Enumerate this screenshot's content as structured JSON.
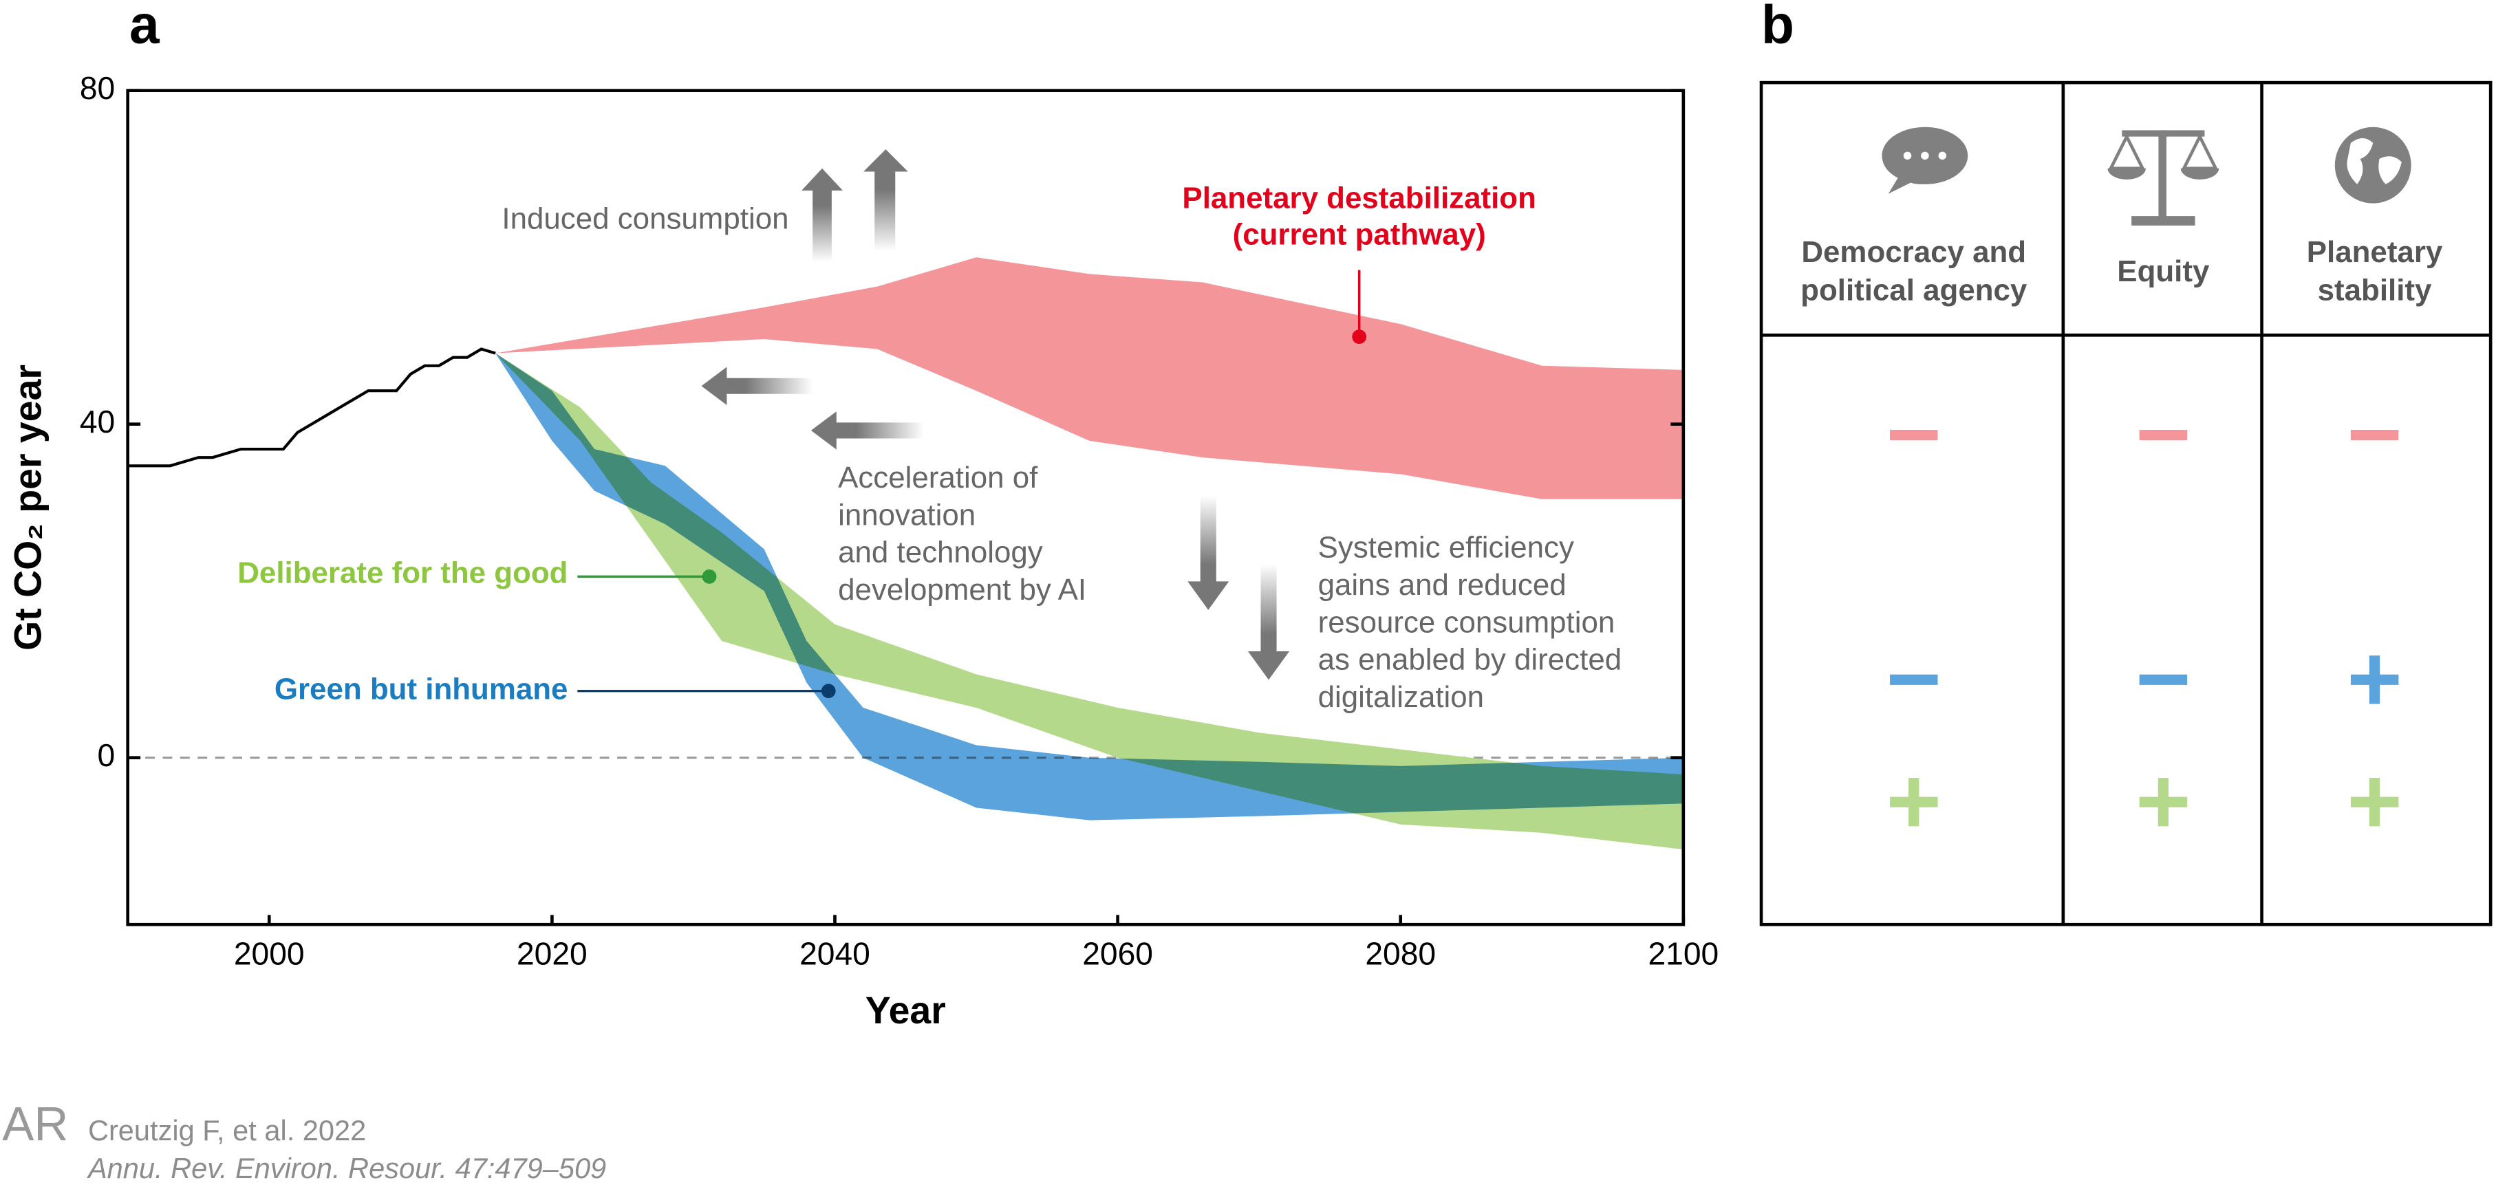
{
  "chart_data": {
    "type": "range-area",
    "panel_label": "a",
    "y_label": "Gt CO₂ per year",
    "x_label": "Year",
    "xlim": [
      1990,
      2100
    ],
    "ylim": [
      -20,
      80
    ],
    "xticks": [
      2000,
      2020,
      2040,
      2060,
      2080,
      2100
    ],
    "yticks": [
      0,
      40,
      80
    ],
    "history": {
      "color": "#000000",
      "x": [
        1990,
        1993,
        1995,
        1996,
        1998,
        2000,
        2001,
        2002,
        2004,
        2007,
        2009,
        2010,
        2011,
        2012,
        2013,
        2014,
        2015,
        2016
      ],
      "values": [
        35,
        35,
        36,
        36,
        37,
        37,
        37,
        39,
        41,
        44,
        44,
        46,
        47,
        47,
        48,
        48,
        49,
        48.5
      ]
    },
    "series": [
      {
        "name": [
          "Planetary destabilization",
          "(current pathway)"
        ],
        "color": "#f4959a",
        "label_color": "#e2001a",
        "x": [
          2016,
          2035,
          2043,
          2050,
          2058,
          2066,
          2080,
          2090,
          2100
        ],
        "upper": [
          48.5,
          54,
          56.5,
          60,
          58,
          57,
          52,
          47,
          46.5
        ],
        "lower": [
          48.5,
          50.2,
          49,
          44,
          38,
          36,
          34,
          31,
          31
        ]
      },
      {
        "name": [
          "Deliberate for the good"
        ],
        "color": "#b5d98a",
        "label_color": "#8dc63f",
        "x": [
          2016,
          2022,
          2027,
          2032,
          2040,
          2050,
          2060,
          2070,
          2080,
          2090,
          2100
        ],
        "upper": [
          48.5,
          42,
          33,
          27,
          16,
          10,
          6,
          3,
          1,
          -1,
          -2
        ],
        "lower": [
          48.5,
          38,
          26,
          14,
          10,
          6,
          0,
          -4,
          -8,
          -9,
          -11
        ]
      },
      {
        "name": [
          "Green but inhumane"
        ],
        "color": "#5ba3dc",
        "label_color": "#1a7cc1",
        "x": [
          2016,
          2020,
          2023,
          2028,
          2035,
          2038,
          2042,
          2050,
          2058,
          2070,
          2080,
          2100
        ],
        "upper": [
          48.5,
          44,
          37,
          35,
          25,
          14,
          6,
          1.5,
          0,
          -0.5,
          -1,
          0
        ],
        "lower": [
          48.5,
          38,
          32,
          28,
          20,
          9,
          0,
          -6,
          -7.5,
          -7,
          -6.5,
          -5.5
        ]
      }
    ],
    "annotations": [
      [
        "Induced consumption"
      ],
      [
        "Acceleration of",
        "innovation",
        "and technology",
        "development by AI"
      ],
      [
        "Systemic efficiency",
        "gains and reduced",
        "resource consumption",
        "as enabled by directed",
        "digitalization"
      ]
    ]
  },
  "panel_b": {
    "panel_label": "b",
    "columns": [
      [
        "Democracy and",
        "political agency"
      ],
      [
        "Equity"
      ],
      [
        "Planetary",
        "stability"
      ]
    ],
    "rows": [
      {
        "color": "#f4959a",
        "signs": [
          "−",
          "−",
          "−"
        ]
      },
      {
        "color": "#5ba3dc",
        "signs": [
          "−",
          "−",
          "+"
        ]
      },
      {
        "color": "#b5d98a",
        "signs": [
          "+",
          "+",
          "+"
        ]
      }
    ]
  },
  "citation": {
    "line1": "Creutzig F, et al. 2022",
    "line2": "Annu. Rev. Environ. Resour. 47:479–509"
  }
}
